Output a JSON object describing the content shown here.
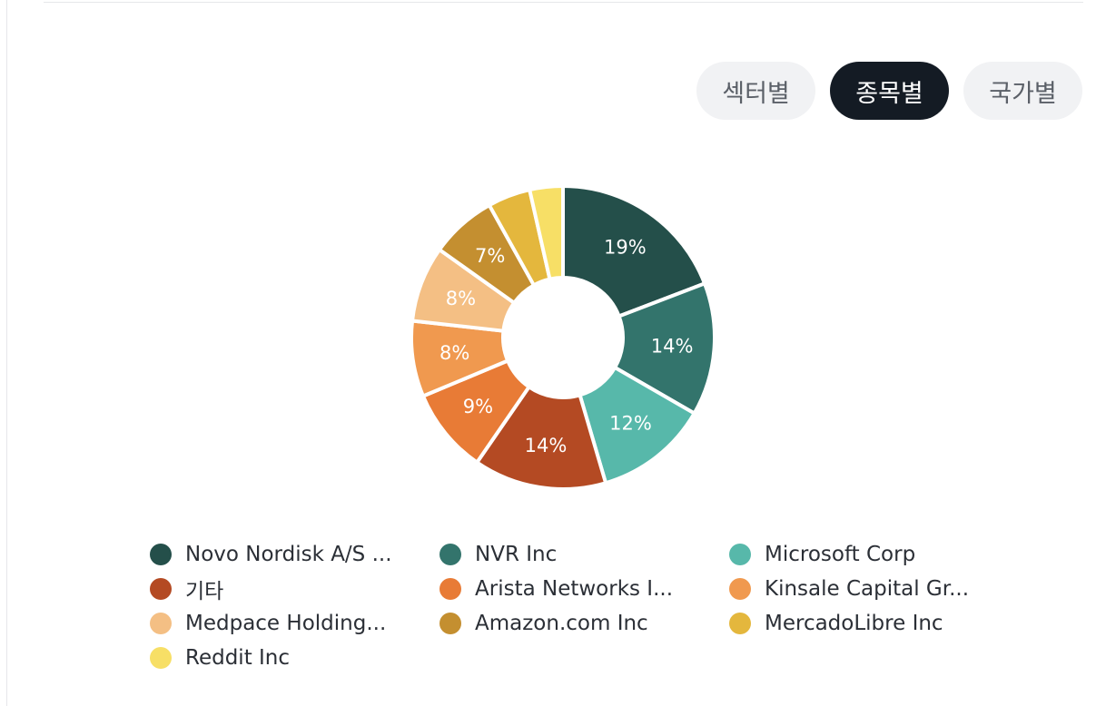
{
  "toggles": [
    {
      "label": "섹터별",
      "active": false
    },
    {
      "label": "종목별",
      "active": true
    },
    {
      "label": "국가별",
      "active": false
    }
  ],
  "chart_data": {
    "type": "pie",
    "donut": true,
    "slices": [
      {
        "name": "Novo Nordisk A/S ...",
        "value": 19,
        "label": "19%",
        "color": "#244f4a"
      },
      {
        "name": "NVR Inc",
        "value": 14,
        "label": "14%",
        "color": "#33746c"
      },
      {
        "name": "Microsoft Corp",
        "value": 12,
        "label": "12%",
        "color": "#57b8aa"
      },
      {
        "name": "기타",
        "value": 14,
        "label": "14%",
        "color": "#b44a23"
      },
      {
        "name": "Arista Networks I...",
        "value": 9,
        "label": "9%",
        "color": "#e87b36"
      },
      {
        "name": "Kinsale Capital Gr...",
        "value": 8,
        "label": "8%",
        "color": "#f0994f"
      },
      {
        "name": "Medpace Holding...",
        "value": 8,
        "label": "8%",
        "color": "#f4bf84"
      },
      {
        "name": "Amazon.com Inc",
        "value": 7,
        "label": "7%",
        "color": "#c48f30"
      },
      {
        "name": "MercadoLibre Inc",
        "value": 4.5,
        "label": "",
        "color": "#e4b73d"
      },
      {
        "name": "Reddit Inc",
        "value": 3.5,
        "label": "",
        "color": "#f7df66"
      }
    ]
  }
}
